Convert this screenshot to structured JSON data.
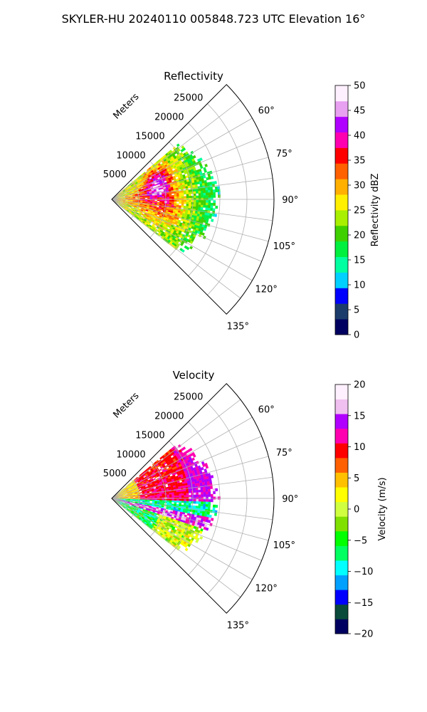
{
  "figure": {
    "suptitle": "SKYLER-HU  20240110  005848.723 UTC Elevation 16°"
  },
  "chart_data": [
    {
      "type": "polar-sector-ppi",
      "title": "Reflectivity",
      "radial_label": "Meters",
      "r_ticks": [
        "5000",
        "10000",
        "15000",
        "20000",
        "25000"
      ],
      "r_max": 30000,
      "theta_ticks": [
        "60°",
        "75°",
        "90°",
        "105°",
        "120°",
        "135°"
      ],
      "theta_tick_values": [
        60,
        75,
        90,
        105,
        120,
        135
      ],
      "sector": [
        45,
        135
      ],
      "grid": true,
      "data_extent": {
        "theta": [
          50,
          128
        ],
        "r": [
          0,
          20000
        ]
      },
      "colorbar": {
        "label": "Reflectivity dBZ",
        "min": 0,
        "max": 50,
        "ticks": [
          "0",
          "5",
          "10",
          "15",
          "20",
          "25",
          "30",
          "35",
          "40",
          "45",
          "50"
        ],
        "stops": [
          "#000060",
          "#1c3c6c",
          "#0000ff",
          "#00d0ff",
          "#00ffa0",
          "#00f040",
          "#40d000",
          "#a8f000",
          "#fff000",
          "#ffb000",
          "#ff6000",
          "#ff0000",
          "#ff00b0",
          "#b000ff",
          "#e8a0f0",
          "#fff0ff"
        ]
      }
    },
    {
      "type": "polar-sector-ppi",
      "title": "Velocity",
      "radial_label": "Meters",
      "r_ticks": [
        "5000",
        "10000",
        "15000",
        "20000",
        "25000"
      ],
      "r_max": 30000,
      "theta_ticks": [
        "60°",
        "75°",
        "90°",
        "105°",
        "120°",
        "135°"
      ],
      "theta_tick_values": [
        60,
        75,
        90,
        105,
        120,
        135
      ],
      "sector": [
        45,
        135
      ],
      "grid": true,
      "data_extent": {
        "theta": [
          50,
          128
        ],
        "r": [
          0,
          20000
        ]
      },
      "colorbar": {
        "label": "Velocity (m/s)",
        "min": -20,
        "max": 20,
        "ticks": [
          "−20",
          "−15",
          "−10",
          "−5",
          "0",
          "5",
          "10",
          "15",
          "20"
        ],
        "stops": [
          "#000060",
          "#0a4a3a",
          "#0000ff",
          "#00a0ff",
          "#00ffff",
          "#00ff60",
          "#00ff00",
          "#80e000",
          "#d0ff40",
          "#ffff00",
          "#ffc000",
          "#ff6000",
          "#ff0000",
          "#ff00b0",
          "#b000ff",
          "#f0c0f0",
          "#fff0ff"
        ]
      }
    }
  ]
}
